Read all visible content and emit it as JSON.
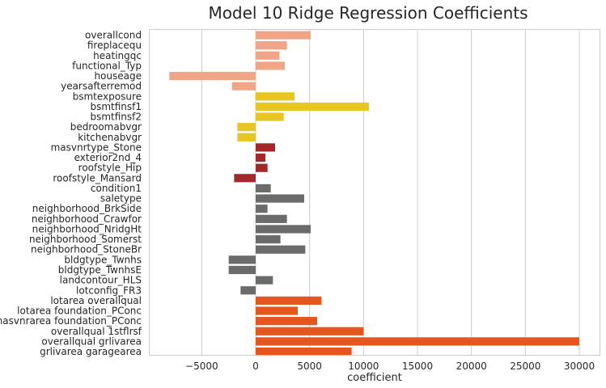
{
  "chart_data": {
    "type": "bar",
    "orientation": "horizontal",
    "title": "Model 10 Ridge Regression Coefficients",
    "xlabel": "coefficient",
    "ylabel": "",
    "xlim": [
      -9000,
      32000
    ],
    "xticks": [
      -5000,
      0,
      5000,
      10000,
      15000,
      20000,
      25000,
      30000
    ],
    "xtick_labels": [
      "−5000",
      "0",
      "5000",
      "10000",
      "15000",
      "20000",
      "25000",
      "30000"
    ],
    "grid": "vertical",
    "categories": [
      "overallcond",
      "fireplacequ",
      "heatingqc",
      "functional_Typ",
      "houseage",
      "yearsafterremod",
      "bsmtexposure",
      "bsmtfinsf1",
      "bsmtfinsf2",
      "bedroomabvgr",
      "kitchenabvgr",
      "masvnrtype_Stone",
      "exterior2nd_4",
      "roofstyle_Hip",
      "roofstyle_Mansard",
      "condition1",
      "saletype",
      "neighborhood_BrkSide",
      "neighborhood_Crawfor",
      "neighborhood_NridgHt",
      "neighborhood_Somerst",
      "neighborhood_StoneBr",
      "bldgtype_Twnhs",
      "bldgtype_TwnhsE",
      "landcontour_HLS",
      "lotconfig_FR3",
      "lotarea overallqual",
      "lotarea foundation_PConc",
      "masvnrarea foundation_PConc",
      "overallqual 1stflrsf",
      "overallqual grlivarea",
      "grlivarea garagearea"
    ],
    "values": [
      5100,
      2900,
      2200,
      2700,
      -8000,
      -2200,
      3600,
      10500,
      2600,
      -1700,
      -1700,
      1800,
      900,
      1100,
      -2000,
      1400,
      4500,
      1100,
      2900,
      5100,
      2300,
      4600,
      -2500,
      -2500,
      1600,
      -1400,
      6100,
      3900,
      5700,
      10000,
      30000,
      8900
    ],
    "colors": [
      "#f0a586",
      "#f0a586",
      "#f0a586",
      "#f0a586",
      "#f0a586",
      "#f0a586",
      "#e8c622",
      "#e8c622",
      "#e8c622",
      "#e8c622",
      "#e8c622",
      "#a3282c",
      "#a3282c",
      "#a3282c",
      "#a3282c",
      "#6b6b6b",
      "#6b6b6b",
      "#6b6b6b",
      "#6b6b6b",
      "#6b6b6b",
      "#6b6b6b",
      "#6b6b6b",
      "#6b6b6b",
      "#6b6b6b",
      "#6b6b6b",
      "#6b6b6b",
      "#e5561f",
      "#e5561f",
      "#e5561f",
      "#e5561f",
      "#e5561f",
      "#e5561f"
    ]
  }
}
